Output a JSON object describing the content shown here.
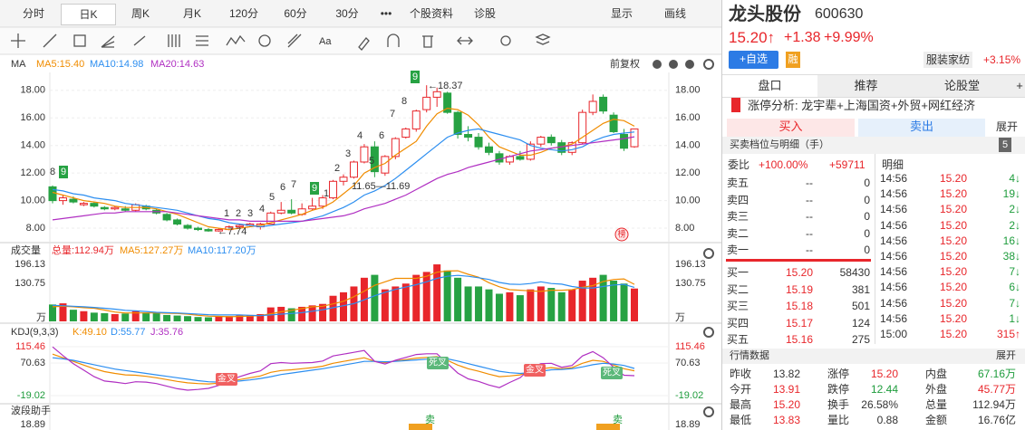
{
  "toolbar": {
    "tabs": [
      "分时",
      "日K",
      "周K",
      "月K",
      "120分",
      "60分",
      "30分",
      "•••",
      "个股资料",
      "诊股"
    ],
    "display": "显示",
    "draw": "画线"
  },
  "chart_data": [
    {
      "type": "candlestick",
      "title": "MA",
      "adjust": "前复权",
      "up_color": "#e8262b",
      "down_color": "#27a243",
      "series": [
        {
          "name": "MA5:15.40",
          "color": "#f08c00",
          "values": [
            10.6,
            10.4,
            10.2,
            10.0,
            9.9,
            9.8,
            9.6,
            9.5,
            9.5,
            9.5,
            9.4,
            9.2,
            9.0,
            8.7,
            8.4,
            8.1,
            8.0,
            7.9,
            8.0,
            8.1,
            8.2,
            8.4,
            8.6,
            8.8,
            9.0,
            9.3,
            9.5,
            9.9,
            10.5,
            11.1,
            12.0,
            12.4,
            12.7,
            13.3,
            13.8,
            14.3,
            15.4,
            16.3,
            16.7,
            16.6,
            16.2,
            15.5,
            14.6,
            13.9,
            13.6,
            13.3,
            13.3,
            13.5,
            13.8,
            13.9,
            14.1,
            14.6,
            15.1,
            15.6,
            15.9,
            15.8,
            15.4
          ]
        },
        {
          "name": "MA10:14.98",
          "color": "#2c8ef0",
          "values": [
            10.8,
            10.7,
            10.5,
            10.4,
            10.2,
            10.1,
            10.0,
            9.8,
            9.7,
            9.6,
            9.5,
            9.4,
            9.3,
            9.1,
            8.9,
            8.7,
            8.6,
            8.4,
            8.3,
            8.2,
            8.1,
            8.2,
            8.3,
            8.4,
            8.5,
            8.7,
            8.9,
            9.2,
            9.5,
            9.9,
            10.4,
            10.7,
            11.1,
            11.6,
            12.2,
            12.8,
            13.4,
            14.0,
            14.6,
            14.9,
            15.1,
            15.2,
            15.0,
            14.8,
            14.6,
            14.4,
            14.0,
            13.8,
            13.7,
            13.6,
            13.7,
            13.9,
            14.3,
            14.6,
            14.8,
            14.9,
            14.98
          ]
        },
        {
          "name": "MA20:14.63",
          "color": "#b02fc2",
          "values": [
            8.6,
            8.7,
            8.8,
            8.9,
            9.0,
            9.1,
            9.1,
            9.2,
            9.2,
            9.2,
            9.2,
            9.2,
            9.1,
            9.0,
            8.9,
            8.8,
            8.7,
            8.6,
            8.6,
            8.5,
            8.5,
            8.5,
            8.5,
            8.5,
            8.5,
            8.6,
            8.7,
            8.8,
            8.9,
            9.1,
            9.4,
            9.6,
            9.8,
            10.1,
            10.4,
            10.8,
            11.2,
            11.6,
            11.9,
            12.1,
            12.4,
            12.6,
            12.8,
            13.0,
            13.2,
            13.4,
            13.6,
            13.7,
            13.8,
            13.9,
            14.0,
            14.1,
            14.2,
            14.3,
            14.4,
            14.5,
            14.63
          ]
        }
      ],
      "ohlc": [
        [
          11.0,
          11.1,
          9.8,
          10.0
        ],
        [
          10.0,
          10.4,
          9.7,
          10.2
        ],
        [
          10.1,
          10.3,
          9.8,
          9.9
        ],
        [
          9.7,
          9.9,
          9.6,
          9.8
        ],
        [
          9.8,
          9.9,
          9.5,
          9.6
        ],
        [
          9.5,
          9.6,
          9.3,
          9.4
        ],
        [
          9.4,
          9.6,
          9.3,
          9.5
        ],
        [
          9.4,
          9.6,
          9.2,
          9.3
        ],
        [
          9.3,
          9.8,
          9.2,
          9.7
        ],
        [
          9.6,
          9.7,
          9.3,
          9.4
        ],
        [
          9.3,
          9.4,
          9.0,
          9.1
        ],
        [
          9.0,
          9.1,
          8.5,
          8.6
        ],
        [
          8.6,
          8.7,
          8.2,
          8.3
        ],
        [
          8.2,
          8.3,
          7.9,
          8.0
        ],
        [
          8.0,
          8.1,
          7.8,
          7.9
        ],
        [
          7.9,
          8.0,
          7.74,
          7.8
        ],
        [
          7.8,
          8.0,
          7.75,
          7.9
        ],
        [
          7.9,
          8.2,
          7.85,
          8.1
        ],
        [
          8.1,
          8.3,
          8.0,
          8.2
        ],
        [
          8.2,
          8.4,
          8.1,
          8.3
        ],
        [
          8.1,
          8.4,
          7.9,
          8.3
        ],
        [
          8.3,
          9.2,
          8.3,
          9.1
        ],
        [
          9.1,
          9.9,
          9.0,
          9.3
        ],
        [
          9.3,
          10.1,
          9.0,
          9.1
        ],
        [
          9.0,
          9.8,
          8.9,
          9.4
        ],
        [
          9.4,
          10.2,
          9.3,
          9.6
        ],
        [
          9.6,
          10.4,
          9.4,
          10.2
        ],
        [
          10.2,
          11.5,
          10.1,
          11.4
        ],
        [
          11.4,
          11.9,
          11.1,
          11.7
        ],
        [
          11.7,
          12.9,
          11.6,
          12.8
        ],
        [
          12.8,
          14.1,
          12.7,
          13.9
        ],
        [
          13.9,
          14.3,
          11.7,
          12.1
        ],
        [
          12.0,
          13.3,
          11.8,
          13.2
        ],
        [
          13.2,
          14.6,
          13.0,
          14.5
        ],
        [
          14.6,
          15.3,
          14.5,
          15.2
        ],
        [
          15.2,
          16.6,
          15.0,
          16.5
        ],
        [
          16.6,
          18.37,
          16.4,
          17.5
        ],
        [
          17.5,
          18.2,
          16.8,
          17.9
        ],
        [
          17.8,
          17.9,
          16.3,
          16.4
        ],
        [
          16.4,
          16.5,
          14.5,
          14.8
        ],
        [
          14.8,
          15.4,
          14.3,
          14.6
        ],
        [
          14.6,
          14.9,
          13.7,
          13.9
        ],
        [
          13.9,
          14.2,
          13.3,
          13.5
        ],
        [
          13.4,
          13.6,
          12.6,
          12.8
        ],
        [
          12.8,
          13.3,
          12.6,
          13.2
        ],
        [
          13.2,
          13.6,
          12.9,
          13.0
        ],
        [
          13.0,
          14.3,
          12.9,
          14.1
        ],
        [
          14.1,
          14.7,
          13.9,
          14.6
        ],
        [
          14.6,
          14.8,
          14.0,
          14.2
        ],
        [
          14.2,
          14.4,
          13.3,
          13.5
        ],
        [
          13.5,
          14.3,
          13.3,
          14.2
        ],
        [
          14.2,
          16.6,
          14.1,
          16.4
        ],
        [
          16.4,
          17.7,
          16.2,
          17.2
        ],
        [
          17.5,
          17.7,
          16.3,
          16.5
        ],
        [
          16.2,
          16.4,
          14.9,
          15.0
        ],
        [
          14.8,
          15.2,
          13.6,
          13.8
        ],
        [
          13.91,
          15.2,
          13.83,
          15.2
        ]
      ],
      "ylim": [
        7.15,
        19.3
      ],
      "yticks": [
        {
          "value": 8,
          "label": "8.00"
        },
        {
          "value": 10,
          "label": "10.00"
        },
        {
          "value": 12,
          "label": "12.00"
        },
        {
          "value": 14,
          "label": "14.00"
        },
        {
          "value": 16,
          "label": "16.00"
        },
        {
          "value": 18,
          "label": "18.00"
        }
      ],
      "grid": true,
      "annotations": [
        "←18.37",
        "11.65—11.69",
        "←7.74"
      ],
      "td_labels": [
        "8",
        "9",
        "1",
        "2",
        "3",
        "4",
        "5",
        "6",
        "7",
        "9",
        "1",
        "2",
        "3",
        "4",
        "5",
        "6",
        "7",
        "8",
        "9"
      ],
      "badge": "榜"
    },
    {
      "type": "bar",
      "title": "成交量",
      "total": "总量:112.94万",
      "unit": "万",
      "values": [
        58,
        62,
        40,
        35,
        30,
        28,
        25,
        27,
        35,
        30,
        28,
        22,
        20,
        18,
        15,
        14,
        16,
        18,
        20,
        22,
        25,
        48,
        50,
        45,
        50,
        55,
        60,
        88,
        100,
        120,
        150,
        160,
        110,
        120,
        130,
        160,
        170,
        196,
        175,
        150,
        120,
        120,
        110,
        95,
        100,
        90,
        110,
        120,
        115,
        100,
        110,
        140,
        150,
        160,
        140,
        130,
        112.94
      ],
      "series": [
        {
          "name": "MA5:127.27万",
          "color": "#f08c00",
          "values": [
            50,
            52,
            50,
            47,
            45,
            39,
            32,
            29,
            29,
            29,
            29,
            28,
            27,
            25,
            21,
            18,
            17,
            16,
            17,
            18,
            20,
            26,
            33,
            38,
            44,
            50,
            52,
            60,
            69,
            85,
            104,
            124,
            136,
            148,
            148,
            148,
            155,
            169,
            173,
            174,
            162,
            152,
            133,
            119,
            109,
            107,
            105,
            103,
            107,
            107,
            109,
            117,
            123,
            137,
            144,
            146,
            127.27
          ]
        },
        {
          "name": "MA10:117.20万",
          "color": "#2c8ef0",
          "values": [
            55,
            54,
            52,
            50,
            48,
            45,
            42,
            38,
            36,
            34,
            31,
            30,
            29,
            27,
            25,
            23,
            22,
            22,
            22,
            21,
            20,
            22,
            25,
            27,
            30,
            35,
            40,
            47,
            54,
            61,
            74,
            88,
            100,
            110,
            118,
            126,
            136,
            148,
            155,
            158,
            155,
            150,
            144,
            134,
            128,
            127,
            130,
            136,
            130,
            128,
            120,
            115,
            115,
            120,
            125,
            127,
            117.2
          ]
        }
      ],
      "ylim": [
        0,
        196.13
      ],
      "yticks": [
        130.75,
        196.13
      ]
    },
    {
      "type": "line",
      "title": "KDJ(9,3,3)",
      "series": [
        {
          "name": "K:49.10",
          "color": "#f08c00",
          "values": [
            95,
            85,
            75,
            65,
            55,
            47,
            42,
            38,
            37,
            34,
            30,
            25,
            20,
            16,
            14,
            13,
            15,
            20,
            25,
            30,
            35,
            45,
            50,
            52,
            55,
            58,
            62,
            70,
            75,
            80,
            85,
            75,
            72,
            76,
            80,
            84,
            86,
            88,
            78,
            65,
            55,
            48,
            40,
            33,
            35,
            38,
            48,
            55,
            58,
            55,
            58,
            70,
            78,
            75,
            65,
            55,
            49.1
          ]
        },
        {
          "name": "D:55.77",
          "color": "#2c8ef0",
          "values": [
            85,
            82,
            78,
            72,
            66,
            60,
            54,
            50,
            46,
            42,
            38,
            34,
            30,
            26,
            22,
            19,
            18,
            19,
            21,
            24,
            28,
            33,
            39,
            43,
            47,
            51,
            55,
            60,
            65,
            70,
            75,
            75,
            74,
            75,
            77,
            79,
            81,
            84,
            82,
            76,
            69,
            62,
            55,
            48,
            44,
            42,
            44,
            48,
            52,
            53,
            55,
            60,
            66,
            70,
            68,
            64,
            55.77
          ]
        },
        {
          "name": "J:35.76",
          "color": "#b02fc2",
          "values": [
            115,
            91,
            69,
            51,
            33,
            21,
            18,
            14,
            19,
            18,
            14,
            7,
            0,
            -4,
            -2,
            1,
            9,
            22,
            33,
            42,
            49,
            69,
            72,
            70,
            71,
            72,
            76,
            90,
            95,
            100,
            105,
            75,
            68,
            78,
            86,
            94,
            96,
            96,
            70,
            43,
            27,
            20,
            10,
            3,
            17,
            30,
            56,
            69,
            70,
            59,
            64,
            90,
            102,
            85,
            59,
            37,
            35.76
          ]
        }
      ],
      "ylim": [
        -19.02,
        115.46
      ],
      "yticks": [
        -19.02,
        70.63,
        115.46
      ],
      "signals": [
        "金叉",
        "死叉",
        "金叉",
        "死叉"
      ]
    },
    {
      "type": "band",
      "title": "波段助手",
      "top_label": "18.89",
      "signals": [
        "卖",
        "卖"
      ]
    }
  ],
  "quote": {
    "name": "龙头股份",
    "code": "600630",
    "price": "15.20↑",
    "change": "+1.38",
    "pct": "+9.99%",
    "add": "+自选",
    "margin": "融",
    "industry": "服装家纺",
    "industry_pct": "+3.15%",
    "tabs": [
      "盘口",
      "推荐",
      "论股堂",
      "+"
    ],
    "limit_up": "涨停分析: 龙宇辈+上海国资+外贸+网红经济",
    "buy": "买入",
    "sell": "卖出",
    "expand": "展开",
    "book_title": "买卖档位与明细（手）",
    "book_n": "5",
    "ratio": "委比",
    "ratio_pct": "+100.00%",
    "ratio_diff": "+59711",
    "detail": "明细",
    "asks": [
      [
        "卖五",
        "--",
        "0"
      ],
      [
        "卖四",
        "--",
        "0"
      ],
      [
        "卖三",
        "--",
        "0"
      ],
      [
        "卖二",
        "--",
        "0"
      ],
      [
        "卖一",
        "--",
        "0"
      ]
    ],
    "bids": [
      [
        "买一",
        "15.20",
        "58430"
      ],
      [
        "买二",
        "15.19",
        "381"
      ],
      [
        "买三",
        "15.18",
        "501"
      ],
      [
        "买四",
        "15.17",
        "124"
      ],
      [
        "买五",
        "15.16",
        "275"
      ]
    ],
    "ticks": [
      [
        "14:56",
        "15.20",
        "4↓"
      ],
      [
        "14:56",
        "15.20",
        "19↓"
      ],
      [
        "14:56",
        "15.20",
        "2↓"
      ],
      [
        "14:56",
        "15.20",
        "2↓"
      ],
      [
        "14:56",
        "15.20",
        "16↓"
      ],
      [
        "14:56",
        "15.20",
        "38↓"
      ],
      [
        "14:56",
        "15.20",
        "7↓"
      ],
      [
        "14:56",
        "15.20",
        "6↓"
      ],
      [
        "14:56",
        "15.20",
        "7↓"
      ],
      [
        "14:56",
        "15.20",
        "1↓"
      ],
      [
        "15:00",
        "15.20",
        "315↑"
      ]
    ],
    "market_title": "行情数据",
    "market_expand": "展开",
    "stats": [
      [
        "昨收",
        "13.82",
        "涨停",
        "15.20",
        "内盘",
        "67.16万"
      ],
      [
        "今开",
        "13.91",
        "跌停",
        "12.44",
        "外盘",
        "45.77万"
      ],
      [
        "最高",
        "15.20",
        "换手",
        "26.58%",
        "总量",
        "112.94万"
      ],
      [
        "最低",
        "13.83",
        "量比",
        "0.88",
        "金额",
        "16.76亿"
      ]
    ]
  }
}
